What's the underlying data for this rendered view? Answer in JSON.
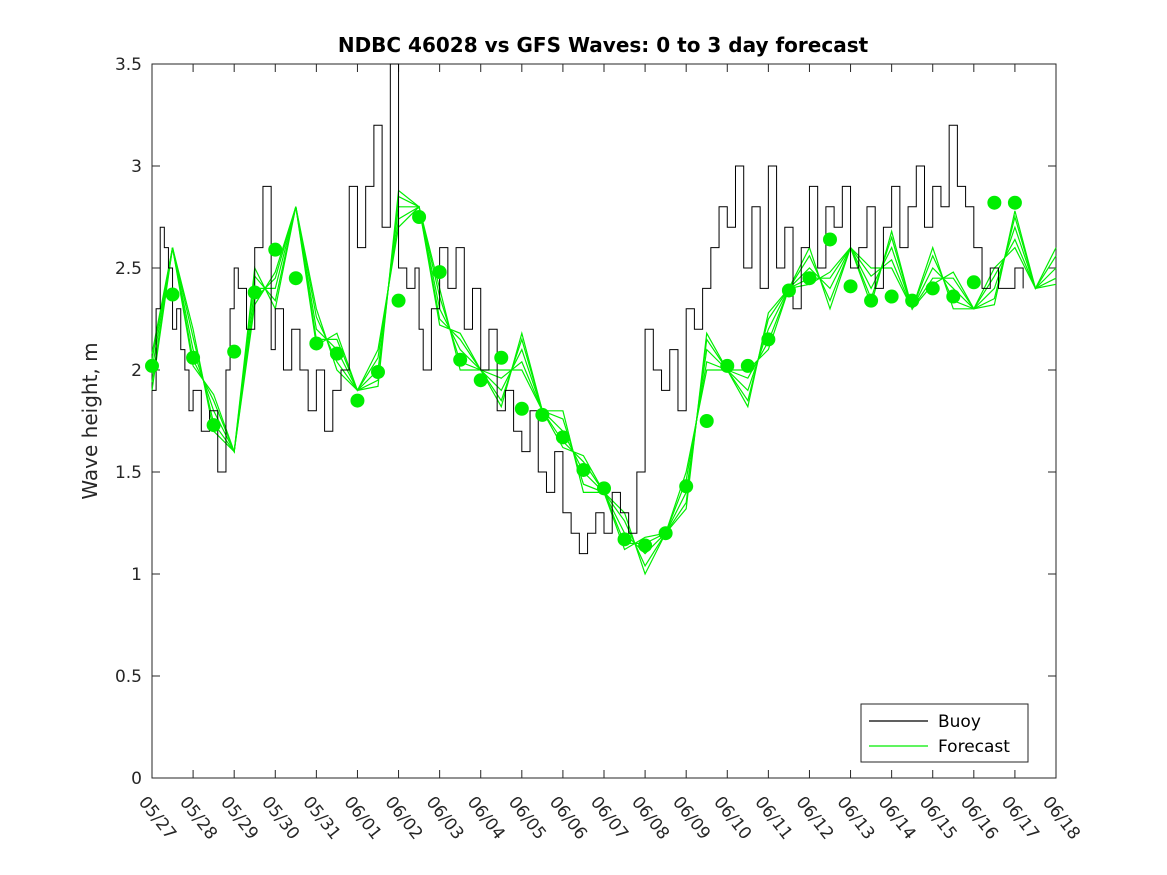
{
  "chart_data": {
    "type": "line",
    "title": "NDBC 46028 vs GFS Waves: 0 to 3 day forecast",
    "xlabel": "",
    "ylabel": "Wave height, m",
    "xlim": [
      "05/27",
      "06/18"
    ],
    "ylim": [
      0,
      3.5
    ],
    "y_ticks": [
      "0",
      "0.5",
      "1",
      "1.5",
      "2",
      "2.5",
      "3",
      "3.5"
    ],
    "x_ticks": [
      "05/27",
      "05/28",
      "05/29",
      "05/30",
      "05/31",
      "06/01",
      "06/02",
      "06/03",
      "06/04",
      "06/05",
      "06/06",
      "06/07",
      "06/08",
      "06/09",
      "06/10",
      "06/11",
      "06/12",
      "06/13",
      "06/14",
      "06/15",
      "06/16",
      "06/17",
      "06/18"
    ],
    "grid": false,
    "legend": {
      "placement": "bottom-right",
      "entries": [
        "Buoy",
        "Forecast"
      ]
    },
    "colors": {
      "buoy": "#000000",
      "forecast": "#00ee00",
      "points": "#00ee00"
    },
    "series": [
      {
        "name": "Buoy",
        "x_days": [
          0,
          0.1,
          0.2,
          0.3,
          0.4,
          0.5,
          0.6,
          0.7,
          0.8,
          0.9,
          1.0,
          1.2,
          1.4,
          1.6,
          1.8,
          1.9,
          2.0,
          2.1,
          2.3,
          2.5,
          2.7,
          2.9,
          3.0,
          3.2,
          3.4,
          3.6,
          3.8,
          4.0,
          4.2,
          4.4,
          4.6,
          4.8,
          5.0,
          5.2,
          5.4,
          5.6,
          5.8,
          6.0,
          6.2,
          6.4,
          6.5,
          6.6,
          6.8,
          7.0,
          7.2,
          7.4,
          7.6,
          7.8,
          8.0,
          8.2,
          8.4,
          8.6,
          8.8,
          9.0,
          9.2,
          9.4,
          9.6,
          9.8,
          10.0,
          10.2,
          10.4,
          10.6,
          10.8,
          11.0,
          11.2,
          11.4,
          11.6,
          11.8,
          12.0,
          12.2,
          12.4,
          12.6,
          12.8,
          13.0,
          13.2,
          13.4,
          13.6,
          13.8,
          14.0,
          14.2,
          14.4,
          14.6,
          14.8,
          15.0,
          15.2,
          15.4,
          15.6,
          15.8,
          16.0,
          16.2,
          16.4,
          16.6,
          16.8,
          17.0,
          17.2,
          17.4,
          17.6,
          17.8,
          18.0,
          18.2,
          18.4,
          18.6,
          18.8,
          19.0,
          19.2,
          19.4,
          19.6,
          19.8,
          20.0,
          20.2,
          20.4,
          20.6,
          20.8,
          21.0,
          21.2
        ],
        "values": [
          1.9,
          2.3,
          2.7,
          2.6,
          2.5,
          2.2,
          2.3,
          2.1,
          2.0,
          1.8,
          1.9,
          1.7,
          1.8,
          1.5,
          2.0,
          2.3,
          2.5,
          2.4,
          2.2,
          2.6,
          2.9,
          2.1,
          2.3,
          2.0,
          2.2,
          2.0,
          1.8,
          2.0,
          1.7,
          1.9,
          2.0,
          2.9,
          2.6,
          2.9,
          3.2,
          2.7,
          3.5,
          2.5,
          2.4,
          2.5,
          2.2,
          2.0,
          2.3,
          2.6,
          2.4,
          2.6,
          2.2,
          2.4,
          2.0,
          2.2,
          1.8,
          1.9,
          1.7,
          1.6,
          1.8,
          1.5,
          1.4,
          1.6,
          1.3,
          1.2,
          1.1,
          1.2,
          1.3,
          1.2,
          1.4,
          1.3,
          1.2,
          1.5,
          2.2,
          2.0,
          1.9,
          2.1,
          1.8,
          2.3,
          2.2,
          2.4,
          2.6,
          2.8,
          2.7,
          3.0,
          2.5,
          2.8,
          2.4,
          3.0,
          2.5,
          2.7,
          2.3,
          2.6,
          2.9,
          2.5,
          2.8,
          2.7,
          2.9,
          2.5,
          2.6,
          2.8,
          2.4,
          2.7,
          2.9,
          2.6,
          2.8,
          3.0,
          2.7,
          2.9,
          2.8,
          3.2,
          2.9,
          2.8,
          2.6,
          2.4,
          2.5,
          2.4,
          2.4,
          2.5,
          2.4
        ]
      },
      {
        "name": "Forecast",
        "x_days": [
          0,
          0.5,
          1.0,
          1.5,
          2.0,
          2.5,
          3.0,
          3.5,
          4.0,
          4.5,
          5.0,
          5.5,
          6.0,
          6.5,
          7.0,
          7.5,
          8.0,
          8.5,
          9.0,
          9.5,
          10.0,
          10.5,
          11.0,
          11.5,
          12.0,
          12.5,
          13.0,
          13.5,
          14.0,
          14.5,
          15.0,
          15.5,
          16.0,
          16.5,
          17.0,
          17.5,
          18.0,
          18.5,
          19.0,
          19.5,
          20.0,
          20.5,
          21.0,
          21.5,
          22.0
        ],
        "values": [
          2.0,
          2.6,
          2.1,
          1.8,
          1.6,
          2.4,
          2.4,
          2.8,
          2.2,
          2.1,
          1.9,
          2.0,
          2.8,
          2.8,
          2.3,
          2.1,
          2.0,
          1.9,
          2.1,
          1.8,
          1.7,
          1.5,
          1.4,
          1.2,
          1.1,
          1.2,
          1.4,
          2.1,
          2.0,
          1.9,
          2.2,
          2.4,
          2.5,
          2.4,
          2.6,
          2.4,
          2.6,
          2.3,
          2.5,
          2.4,
          2.3,
          2.4,
          2.7,
          2.4,
          2.5
        ]
      }
    ],
    "points_x_days": [
      0,
      0.5,
      1.0,
      1.5,
      2.0,
      2.5,
      3.0,
      3.5,
      4.0,
      4.5,
      5.0,
      5.5,
      6.0,
      6.5,
      7.0,
      7.5,
      8.0,
      8.5,
      9.0,
      9.5,
      10.0,
      10.5,
      11.0,
      11.5,
      12.0,
      12.5,
      13.0,
      13.5,
      14.0,
      14.5,
      15.0,
      15.5,
      16.0,
      16.5,
      17.0,
      17.5,
      18.0,
      18.5,
      19.0,
      19.5,
      20.0,
      20.5,
      21.0
    ],
    "points_values": [
      2.02,
      2.37,
      2.06,
      1.73,
      2.09,
      2.38,
      2.59,
      2.45,
      2.13,
      2.08,
      1.85,
      1.99,
      2.34,
      2.75,
      2.48,
      2.05,
      1.95,
      2.06,
      1.81,
      1.78,
      1.67,
      1.51,
      1.42,
      1.17,
      1.14,
      1.2,
      1.43,
      1.75,
      2.02,
      2.02,
      2.15,
      2.39,
      2.45,
      2.64,
      2.41,
      2.34,
      2.36,
      2.34,
      2.4,
      2.36,
      2.43,
      2.82,
      2.82
    ]
  }
}
